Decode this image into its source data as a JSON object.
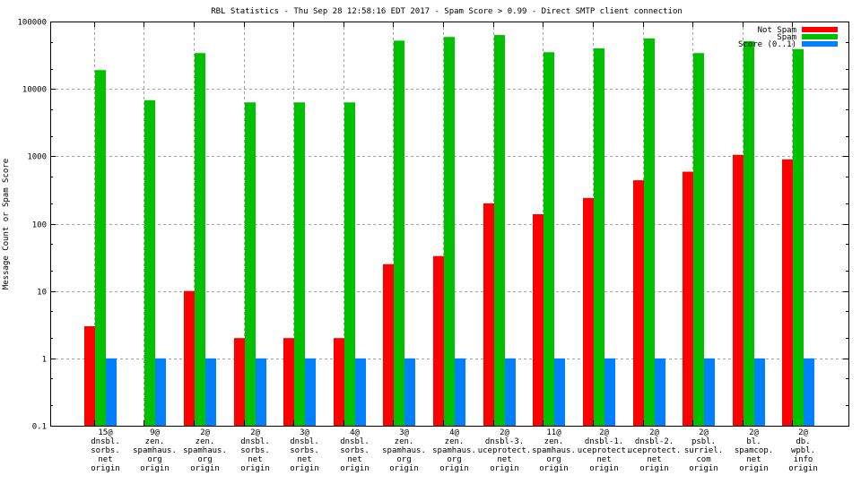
{
  "chart_data": {
    "type": "bar",
    "title": "RBL Statistics - Thu Sep 28 12:58:16 EDT 2017 - Spam Score > 0.99 - Direct SMTP client connection",
    "xlabel": "",
    "ylabel": "Message Count or Spam Score",
    "yscale": "log",
    "ylim": [
      0.1,
      100000
    ],
    "yticks": [
      "0.1",
      "1",
      "10",
      "100",
      "1000",
      "10000",
      "100000"
    ],
    "grid": true,
    "legend_position": "top-right",
    "categories": [
      [
        "15@",
        "dnsbl.",
        "sorbs.",
        "net",
        "origin"
      ],
      [
        "9@",
        "zen.",
        "spamhaus.",
        "org",
        "origin"
      ],
      [
        "2@",
        "zen.",
        "spamhaus.",
        "org",
        "origin"
      ],
      [
        "2@",
        "dnsbl.",
        "sorbs.",
        "net",
        "origin"
      ],
      [
        "3@",
        "dnsbl.",
        "sorbs.",
        "net",
        "origin"
      ],
      [
        "4@",
        "dnsbl.",
        "sorbs.",
        "net",
        "origin"
      ],
      [
        "3@",
        "zen.",
        "spamhaus.",
        "org",
        "origin"
      ],
      [
        "4@",
        "zen.",
        "spamhaus.",
        "org",
        "origin"
      ],
      [
        "2@",
        "dnsbl-3.",
        "uceprotect.",
        "net",
        "origin"
      ],
      [
        "11@",
        "zen.",
        "spamhaus.",
        "org",
        "origin"
      ],
      [
        "2@",
        "dnsbl-1.",
        "uceprotect.",
        "net",
        "origin"
      ],
      [
        "2@",
        "dnsbl-2.",
        "uceprotect.",
        "net",
        "origin"
      ],
      [
        "2@",
        "psbl.",
        "surriel.",
        "com",
        "origin"
      ],
      [
        "2@",
        "bl.",
        "spamcop.",
        "net",
        "origin"
      ],
      [
        "2@",
        "db.",
        "wpbl.",
        "info",
        "origin"
      ]
    ],
    "series": [
      {
        "name": "Not Spam",
        "color": "#ff0000",
        "values": [
          3,
          0,
          10,
          2,
          2,
          2,
          25,
          33,
          200,
          138,
          240,
          440,
          590,
          1050,
          900
        ]
      },
      {
        "name": "Spam",
        "color": "#00c000",
        "values": [
          19000,
          6800,
          34000,
          6300,
          6300,
          6300,
          52000,
          59000,
          63000,
          35000,
          40000,
          56000,
          34000,
          51000,
          39000
        ]
      },
      {
        "name": "Score (0..1)",
        "color": "#0080ff",
        "values": [
          1,
          1,
          1,
          1,
          1,
          1,
          1,
          1,
          1,
          1,
          1,
          1,
          1,
          1,
          1
        ]
      }
    ]
  }
}
